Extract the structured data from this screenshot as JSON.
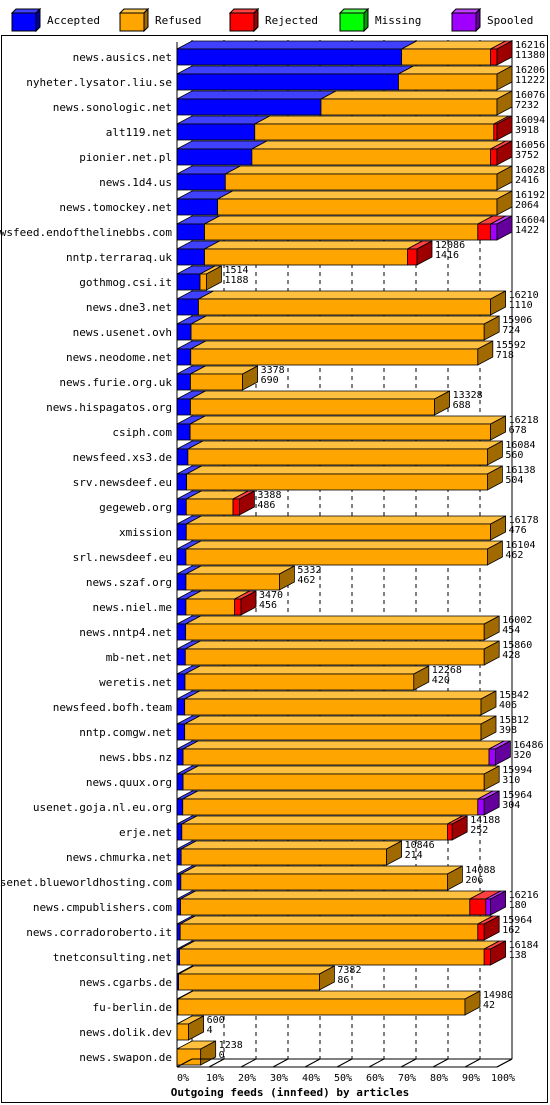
{
  "legend": [
    {
      "label": "Accepted",
      "color": "#0000ff",
      "side": "#00009c",
      "top": "#4040ff"
    },
    {
      "label": "Refused",
      "color": "#ffa500",
      "side": "#a06a00",
      "top": "#ffc040"
    },
    {
      "label": "Rejected",
      "color": "#ff0000",
      "side": "#9c0000",
      "top": "#ff4040"
    },
    {
      "label": "Missing",
      "color": "#00ff00",
      "side": "#009c00",
      "top": "#40ff40"
    },
    {
      "label": "Spooled",
      "color": "#a000ff",
      "side": "#64009c",
      "top": "#c040ff"
    }
  ],
  "chart_data": {
    "type": "bar",
    "orientation": "horizontal",
    "stacked": true,
    "title": "",
    "xlabel": "Outgoing feeds (innfeed) by articles",
    "xlim": [
      0,
      100
    ],
    "xticks": [
      "0%",
      "10%",
      "20%",
      "30%",
      "40%",
      "50%",
      "60%",
      "70%",
      "80%",
      "90%",
      "100%"
    ],
    "series_names": [
      "Accepted",
      "Refused",
      "Rejected",
      "Missing",
      "Spooled"
    ],
    "rows": [
      {
        "name": "news.ausics.net",
        "total": "16216",
        "accepted": "11380",
        "pct": [
          70.2,
          27.8,
          2.0,
          0,
          0
        ]
      },
      {
        "name": "nyheter.lysator.liu.se",
        "total": "16206",
        "accepted": "11222",
        "pct": [
          69.2,
          30.8,
          0,
          0,
          0
        ]
      },
      {
        "name": "news.sonologic.net",
        "total": "16076",
        "accepted": "7232",
        "pct": [
          45.0,
          55.0,
          0,
          0,
          0
        ]
      },
      {
        "name": "alt119.net",
        "total": "16094",
        "accepted": "3918",
        "pct": [
          24.3,
          74.7,
          1.0,
          0,
          0
        ]
      },
      {
        "name": "pionier.net.pl",
        "total": "16056",
        "accepted": "3752",
        "pct": [
          23.4,
          74.6,
          2.0,
          0,
          0
        ]
      },
      {
        "name": "news.1d4.us",
        "total": "16028",
        "accepted": "2416",
        "pct": [
          15.1,
          84.9,
          0,
          0,
          0
        ]
      },
      {
        "name": "news.tomockey.net",
        "total": "16192",
        "accepted": "2064",
        "pct": [
          12.7,
          87.3,
          0,
          0,
          0
        ]
      },
      {
        "name": "newsfeed.endofthelinebbs.com",
        "total": "16604",
        "accepted": "1422",
        "pct": [
          8.6,
          85.4,
          4.0,
          0,
          2.0
        ]
      },
      {
        "name": "nntp.terraraq.uk",
        "total": "12086",
        "accepted": "1416",
        "pct": [
          8.6,
          63.4,
          3.0,
          0,
          0
        ]
      },
      {
        "name": "gothmog.csi.it",
        "total": "1514",
        "accepted": "1188",
        "pct": [
          7.2,
          2.0,
          0,
          0,
          0
        ]
      },
      {
        "name": "news.dne3.net",
        "total": "16210",
        "accepted": "1110",
        "pct": [
          6.7,
          91.3,
          0,
          0,
          0
        ]
      },
      {
        "name": "news.usenet.ovh",
        "total": "15906",
        "accepted": "724",
        "pct": [
          4.4,
          91.6,
          0,
          0,
          0
        ]
      },
      {
        "name": "news.neodome.net",
        "total": "15592",
        "accepted": "718",
        "pct": [
          4.3,
          89.7,
          0,
          0,
          0
        ]
      },
      {
        "name": "news.furie.org.uk",
        "total": "3378",
        "accepted": "690",
        "pct": [
          4.2,
          16.3,
          0,
          0,
          0
        ]
      },
      {
        "name": "news.hispagatos.org",
        "total": "13328",
        "accepted": "688",
        "pct": [
          4.2,
          76.3,
          0,
          0,
          0
        ]
      },
      {
        "name": "csiph.com",
        "total": "16218",
        "accepted": "678",
        "pct": [
          4.1,
          93.9,
          0,
          0,
          0
        ]
      },
      {
        "name": "newsfeed.xs3.de",
        "total": "16084",
        "accepted": "560",
        "pct": [
          3.4,
          93.6,
          0,
          0,
          0
        ]
      },
      {
        "name": "srv.newsdeef.eu",
        "total": "16138",
        "accepted": "504",
        "pct": [
          3.0,
          94.0,
          0,
          0,
          0
        ]
      },
      {
        "name": "gegeweb.org",
        "total": "3388",
        "accepted": "486",
        "pct": [
          2.9,
          14.6,
          2.0,
          0,
          0
        ]
      },
      {
        "name": "xmission",
        "total": "16178",
        "accepted": "476",
        "pct": [
          2.9,
          95.1,
          0,
          0,
          0
        ]
      },
      {
        "name": "srl.newsdeef.eu",
        "total": "16104",
        "accepted": "462",
        "pct": [
          2.8,
          94.2,
          0,
          0,
          0
        ]
      },
      {
        "name": "news.szaf.org",
        "total": "5332",
        "accepted": "462",
        "pct": [
          2.8,
          29.2,
          0,
          0,
          0
        ]
      },
      {
        "name": "news.niel.me",
        "total": "3470",
        "accepted": "456",
        "pct": [
          2.8,
          15.2,
          2.0,
          0,
          0
        ]
      },
      {
        "name": "news.nntp4.net",
        "total": "16002",
        "accepted": "454",
        "pct": [
          2.7,
          93.3,
          0,
          0,
          0
        ]
      },
      {
        "name": "mb-net.net",
        "total": "15860",
        "accepted": "428",
        "pct": [
          2.6,
          93.4,
          0,
          0,
          0
        ]
      },
      {
        "name": "weretis.net",
        "total": "12268",
        "accepted": "420",
        "pct": [
          2.5,
          71.5,
          0,
          0,
          0
        ]
      },
      {
        "name": "newsfeed.bofh.team",
        "total": "15842",
        "accepted": "406",
        "pct": [
          2.4,
          92.6,
          0,
          0,
          0
        ]
      },
      {
        "name": "nntp.comgw.net",
        "total": "15812",
        "accepted": "398",
        "pct": [
          2.4,
          92.6,
          0,
          0,
          0
        ]
      },
      {
        "name": "news.bbs.nz",
        "total": "16486",
        "accepted": "320",
        "pct": [
          1.9,
          95.6,
          0,
          0,
          2.0
        ]
      },
      {
        "name": "news.quux.org",
        "total": "15994",
        "accepted": "310",
        "pct": [
          1.9,
          94.1,
          0,
          0,
          0
        ]
      },
      {
        "name": "usenet.goja.nl.eu.org",
        "total": "15964",
        "accepted": "304",
        "pct": [
          1.8,
          92.2,
          0,
          0,
          2.0
        ]
      },
      {
        "name": "erje.net",
        "total": "14188",
        "accepted": "252",
        "pct": [
          1.5,
          83.0,
          1.5,
          0,
          0
        ]
      },
      {
        "name": "news.chmurka.net",
        "total": "10846",
        "accepted": "214",
        "pct": [
          1.3,
          64.2,
          0,
          0,
          0
        ]
      },
      {
        "name": "usenet.blueworldhosting.com",
        "total": "14088",
        "accepted": "206",
        "pct": [
          1.2,
          83.3,
          0,
          0,
          0
        ]
      },
      {
        "name": "news.cmpublishers.com",
        "total": "16216",
        "accepted": "180",
        "pct": [
          1.1,
          90.4,
          5.0,
          0,
          1.5
        ]
      },
      {
        "name": "news.corradoroberto.it",
        "total": "15964",
        "accepted": "162",
        "pct": [
          1.0,
          93.0,
          2.0,
          0,
          0
        ]
      },
      {
        "name": "tnetconsulting.net",
        "total": "16184",
        "accepted": "138",
        "pct": [
          0.8,
          95.2,
          2.0,
          0,
          0
        ]
      },
      {
        "name": "news.cgarbs.de",
        "total": "7382",
        "accepted": "86",
        "pct": [
          0.5,
          44.0,
          0,
          0,
          0
        ]
      },
      {
        "name": "fu-berlin.de",
        "total": "14980",
        "accepted": "42",
        "pct": [
          0.3,
          89.7,
          0,
          0,
          0
        ]
      },
      {
        "name": "news.dolik.dev",
        "total": "600",
        "accepted": "4",
        "pct": [
          0.02,
          3.6,
          0,
          0,
          0
        ]
      },
      {
        "name": "news.swapon.de",
        "total": "1238",
        "accepted": "0",
        "pct": [
          0,
          7.4,
          0,
          0,
          0
        ]
      }
    ]
  }
}
